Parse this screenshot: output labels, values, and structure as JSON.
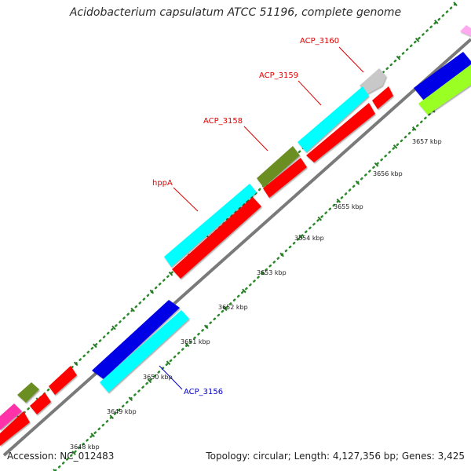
{
  "title": "Acidobacterium capsulatum ATCC 51196, complete genome",
  "footer": {
    "accession": "Accession: NC_012483",
    "topology": "Topology: circular; Length: 4,127,356 bp; Genes: 3,425"
  },
  "kbp_labels": [
    "3648 kbp",
    "3649 kbp",
    "3650 kbp",
    "3651 kbp",
    "3652 kbp",
    "3653 kbp",
    "3654 kbp",
    "3655 kbp",
    "3656 kbp",
    "3657 kbp"
  ],
  "gene_labels": [
    {
      "id": "ACP_3160",
      "text": "ACP_3160",
      "color": "#e00000"
    },
    {
      "id": "ACP_3159",
      "text": "ACP_3159",
      "color": "#e00000"
    },
    {
      "id": "ACP_3158",
      "text": "ACP_3158",
      "color": "#e00000"
    },
    {
      "id": "hppA",
      "text": "hppA",
      "color": "#e00000"
    },
    {
      "id": "ACP_3156",
      "text": "ACP_3156",
      "color": "#0000cc"
    }
  ],
  "colors": {
    "red": "#ff0000",
    "cyan": "#00ffff",
    "blue": "#0000e6",
    "olive": "#6b8e23",
    "gray": "#c8c8c8",
    "lime": "#9aff22",
    "magenta": "#ff33aa",
    "pink": "#ffaaee",
    "backbone": "#7a7a7a",
    "dots": "#2a8a2a"
  }
}
